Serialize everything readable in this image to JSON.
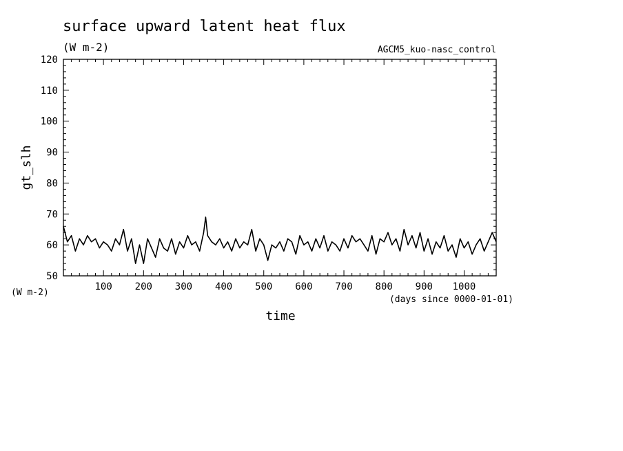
{
  "chart_data": {
    "type": "line",
    "title": "surface upward latent heat flux",
    "units": "(W m-2)",
    "run_label": "AGCM5_kuo-nasc_control",
    "xlabel": "time",
    "xunits": "(days since 0000-01-01)",
    "ylabel": "gt_slh",
    "yunits_corner": "(W m-2)",
    "xlim": [
      0,
      1080
    ],
    "ylim": [
      50,
      120
    ],
    "xticks": [
      "100",
      "200",
      "300",
      "400",
      "500",
      "600",
      "700",
      "800",
      "900",
      "1000"
    ],
    "yticks": [
      "50",
      "60",
      "70",
      "80",
      "90",
      "100",
      "110",
      "120"
    ],
    "grid": false,
    "series": [
      {
        "x": [
          0,
          10,
          20,
          30,
          40,
          50,
          60,
          70,
          80,
          90,
          100,
          110,
          120,
          130,
          140,
          150,
          160,
          170,
          180,
          190,
          200,
          210,
          220,
          230,
          240,
          250,
          260,
          270,
          280,
          290,
          300,
          310,
          320,
          330,
          340,
          350,
          355,
          360,
          370,
          380,
          390,
          400,
          410,
          420,
          430,
          440,
          450,
          460,
          470,
          480,
          490,
          500,
          510,
          520,
          530,
          540,
          550,
          560,
          570,
          580,
          590,
          600,
          610,
          620,
          630,
          640,
          650,
          660,
          670,
          680,
          690,
          700,
          710,
          720,
          730,
          740,
          750,
          760,
          770,
          780,
          790,
          800,
          810,
          820,
          830,
          840,
          850,
          860,
          870,
          880,
          890,
          900,
          910,
          920,
          930,
          940,
          950,
          960,
          970,
          980,
          990,
          1000,
          1010,
          1020,
          1030,
          1040,
          1050,
          1060,
          1070,
          1080
        ],
        "values": [
          66,
          61,
          63,
          58,
          62,
          60,
          63,
          61,
          62,
          59,
          61,
          60,
          58,
          62,
          60,
          65,
          58,
          62,
          54,
          60,
          54,
          62,
          59,
          56,
          62,
          59,
          58,
          62,
          57,
          61,
          59,
          63,
          60,
          61,
          58,
          64,
          69,
          63,
          61,
          60,
          62,
          59,
          61,
          58,
          62,
          59,
          61,
          60,
          65,
          58,
          62,
          60,
          55,
          60,
          59,
          61,
          58,
          62,
          61,
          57,
          63,
          60,
          61,
          58,
          62,
          59,
          63,
          58,
          61,
          60,
          58,
          62,
          59,
          63,
          61,
          62,
          60,
          58,
          63,
          57,
          62,
          61,
          64,
          60,
          62,
          58,
          65,
          60,
          63,
          59,
          64,
          58,
          62,
          57,
          61,
          59,
          63,
          58,
          60,
          56,
          62,
          59,
          61,
          57,
          60,
          62,
          58,
          61,
          64,
          61
        ]
      }
    ]
  }
}
